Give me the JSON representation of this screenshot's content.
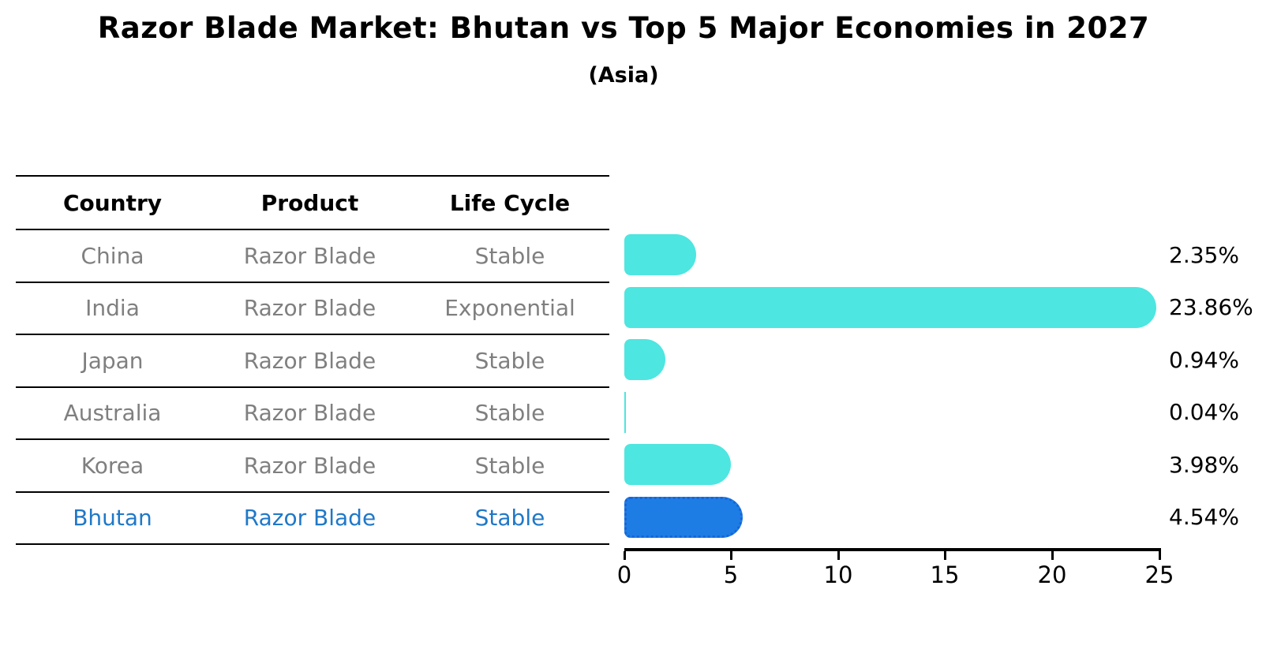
{
  "header": {
    "title": "Razor Blade Market: Bhutan vs Top 5 Major Economies in 2027",
    "subtitle": "(Asia)"
  },
  "table": {
    "columns": [
      "Country",
      "Product",
      "Life Cycle"
    ],
    "rows": [
      {
        "country": "China",
        "product": "Razor Blade",
        "life_cycle": "Stable",
        "highlight": false
      },
      {
        "country": "India",
        "product": "Razor Blade",
        "life_cycle": "Exponential",
        "highlight": false
      },
      {
        "country": "Japan",
        "product": "Razor Blade",
        "life_cycle": "Stable",
        "highlight": false
      },
      {
        "country": "Australia",
        "product": "Razor Blade",
        "life_cycle": "Stable",
        "highlight": false
      },
      {
        "country": "Korea",
        "product": "Razor Blade",
        "life_cycle": "Stable",
        "highlight": false
      },
      {
        "country": "Bhutan",
        "product": "Razor Blade",
        "life_cycle": "Stable",
        "highlight": true
      }
    ]
  },
  "chart_data": {
    "type": "bar",
    "orientation": "horizontal",
    "title": "Razor Blade Market: Bhutan vs Top 5 Major Economies in 2027",
    "subtitle": "(Asia)",
    "categories": [
      "China",
      "India",
      "Japan",
      "Australia",
      "Korea",
      "Bhutan"
    ],
    "values": [
      2.35,
      23.86,
      0.94,
      0.04,
      3.98,
      4.54
    ],
    "labels": [
      "2.35%",
      "23.86%",
      "0.94%",
      "0.04%",
      "3.98%",
      "4.54%"
    ],
    "xlim": [
      0,
      25
    ],
    "xticks": [
      "0",
      "5",
      "10",
      "15",
      "20",
      "25"
    ],
    "grid": false,
    "legend": "none",
    "highlight_index": 5,
    "colors": {
      "bar": "#4DE6E0",
      "highlight_bar": "#1E7DE5",
      "highlight_border": "#1565D8",
      "highlight_text": "#1F78C8",
      "row_text": "#7F7F7F",
      "axis": "#000000"
    }
  }
}
